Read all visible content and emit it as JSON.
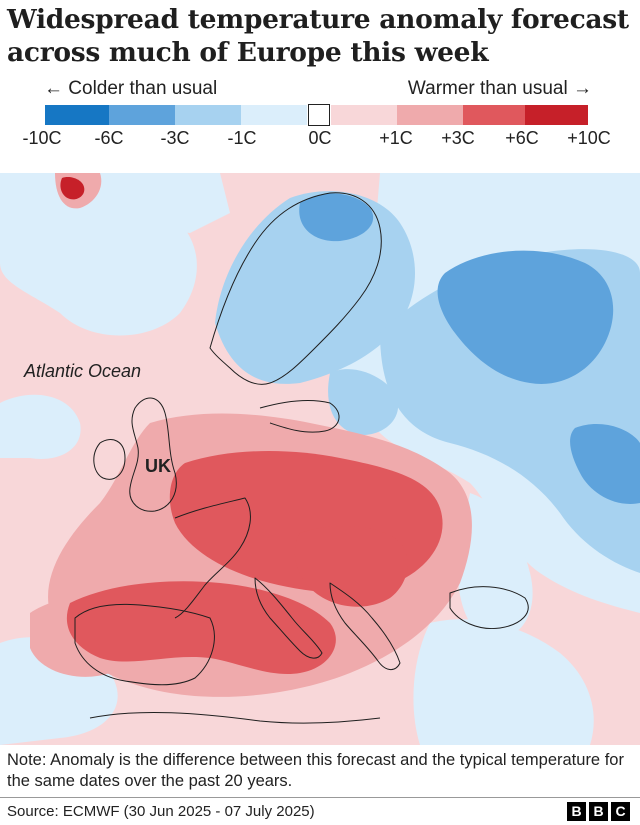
{
  "title": {
    "line1": "Widespread temperature anomaly forecast",
    "line2": "across much of Europe this week"
  },
  "legend": {
    "colder_label": "← Colder than usual",
    "warmer_label": "Warmer than usual →",
    "ticks": [
      "-10C",
      "-6C",
      "-3C",
      "-1C",
      "0C",
      "+1C",
      "+3C",
      "+6C",
      "+10C"
    ],
    "colors": {
      "cold_strong": "#1677c4",
      "cold_mid": "#5ea3dc",
      "cold_light": "#a7d2f0",
      "cold_faint": "#dbeefb",
      "zero": "#ffffff",
      "warm_faint": "#f8d7d9",
      "warm_light": "#efaaac",
      "warm_mid": "#e0585d",
      "warm_strong": "#c62029"
    }
  },
  "map": {
    "labels": {
      "ocean": "Atlantic Ocean",
      "uk": "UK"
    }
  },
  "note": "Note: Anomaly is the difference between this forecast and the typical temperature for the same dates over the past 20 years.",
  "source": "Source: ECMWF (30 Jun 2025 - 07 July 2025)",
  "logo": [
    "B",
    "B",
    "C"
  ]
}
